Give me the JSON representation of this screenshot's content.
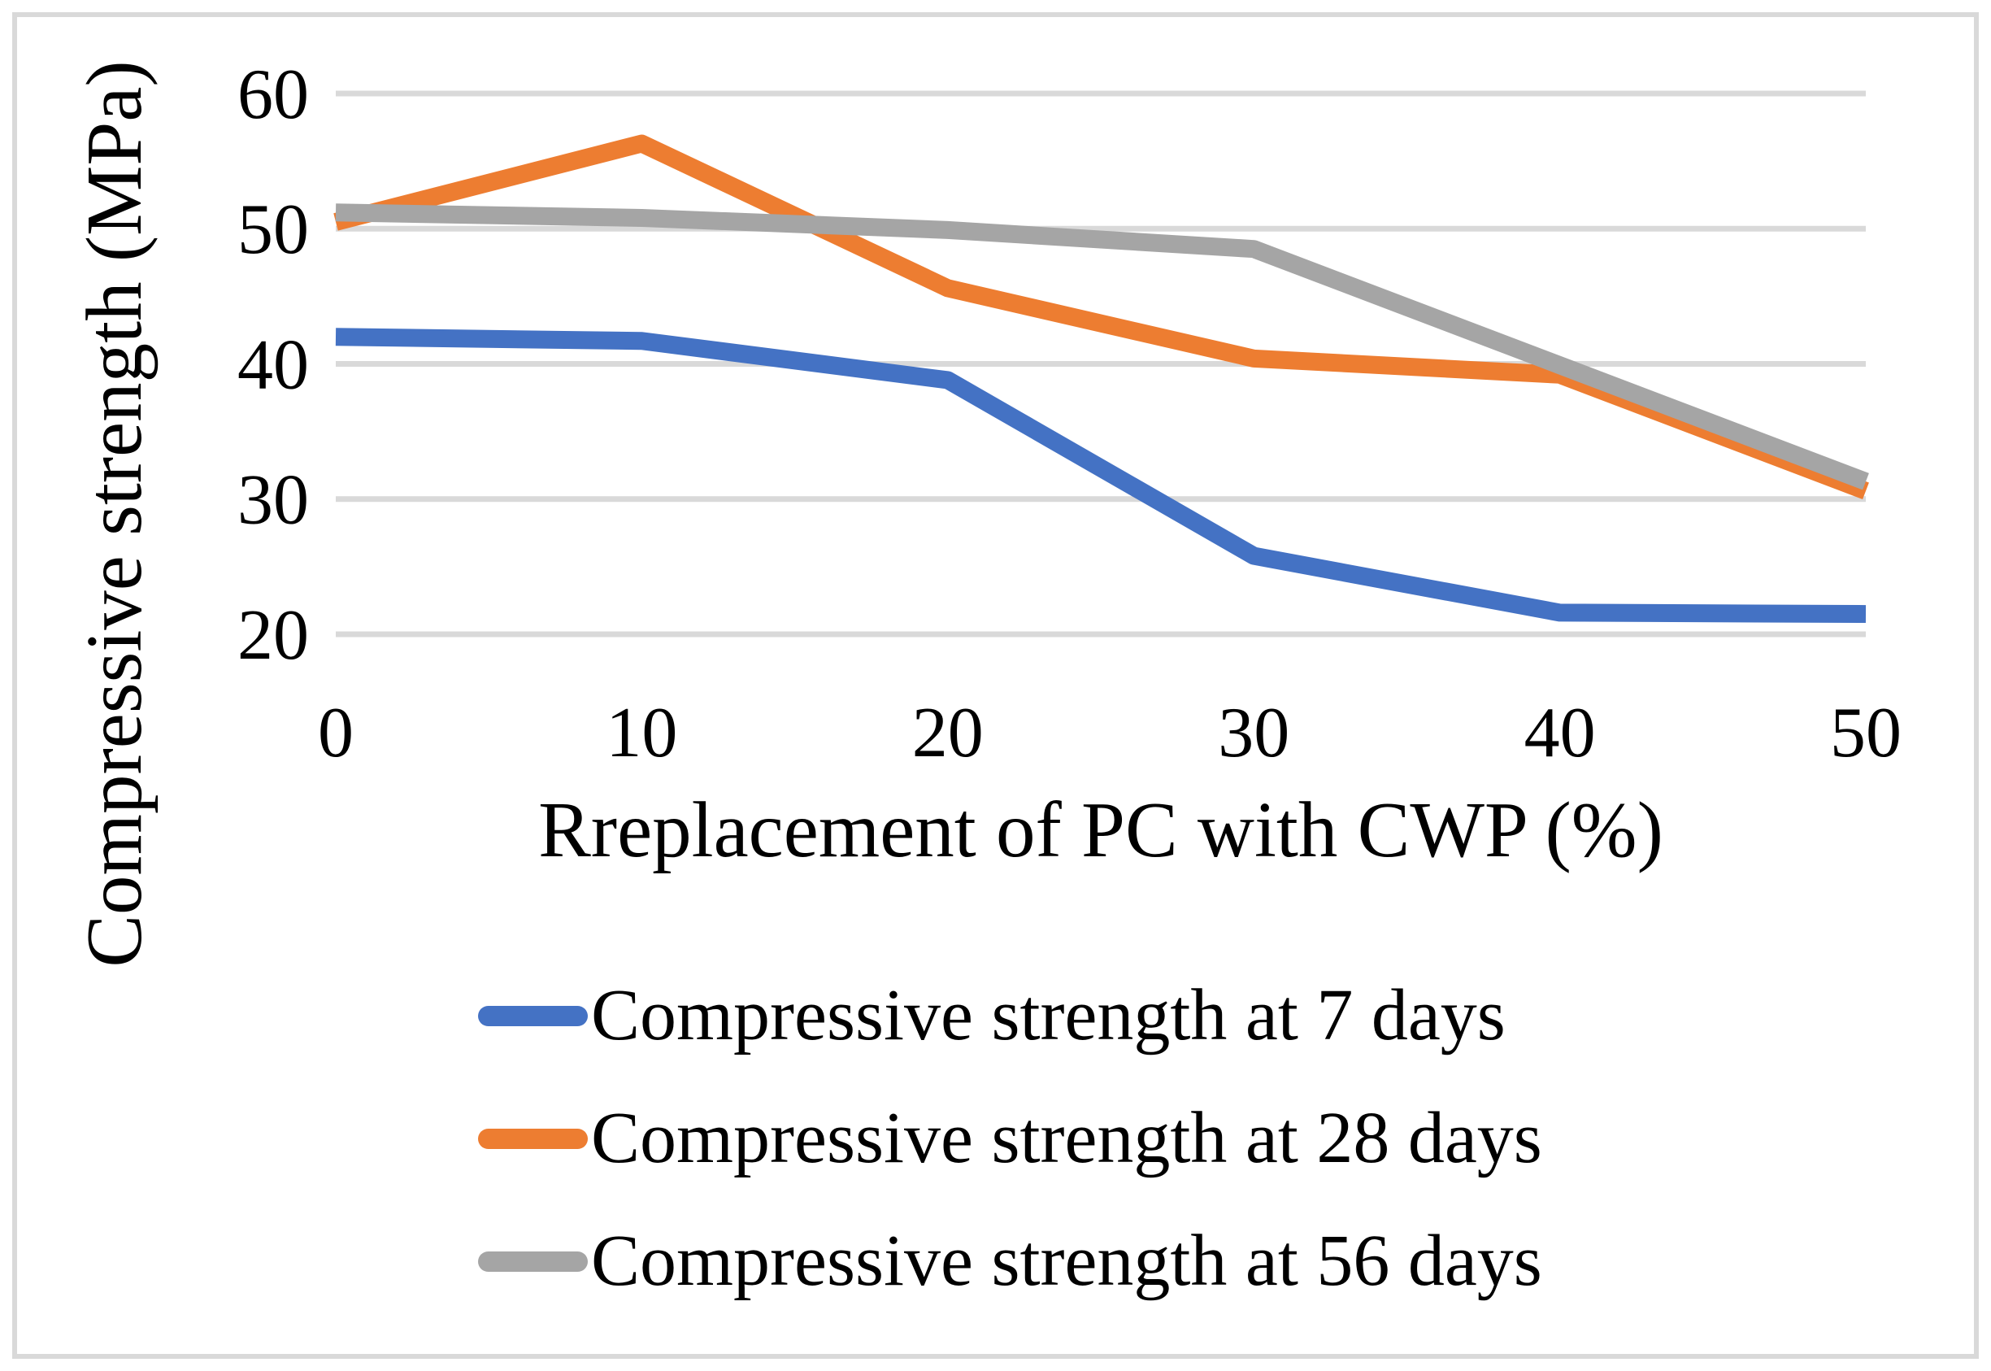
{
  "figure": {
    "background": "#FFFFFF",
    "border_color": "#D9D9D9"
  },
  "chart_data": {
    "type": "line",
    "title": "",
    "x": [
      0,
      10,
      20,
      30,
      40,
      50
    ],
    "x_ticks": [
      "0",
      "10",
      "20",
      "30",
      "40",
      "50"
    ],
    "y_ticks": [
      "60",
      "50",
      "40",
      "30",
      "20"
    ],
    "xlabel": "Rreplacement of PC with CWP (%)",
    "ylabel": "Compressive strength (MPa)",
    "ylim": [
      20,
      60
    ],
    "xlim": [
      0,
      50
    ],
    "grid": "horizontal",
    "gridline_color": "#D9D9D9",
    "text_color": "#000000",
    "legend_position": "bottom",
    "series": [
      {
        "name": "Compressive strength at 7 days",
        "color": "#4472C4",
        "values": [
          42.0,
          41.7,
          38.8,
          25.8,
          21.6,
          21.5
        ]
      },
      {
        "name": "Compressive strength at 28 days",
        "color": "#ED7D31",
        "values": [
          50.5,
          56.3,
          45.6,
          40.4,
          39.2,
          30.6
        ]
      },
      {
        "name": "Compressive strength at 56 days",
        "color": "#A5A5A5",
        "values": [
          51.2,
          50.8,
          49.9,
          48.5,
          39.9,
          31.3
        ]
      }
    ]
  }
}
